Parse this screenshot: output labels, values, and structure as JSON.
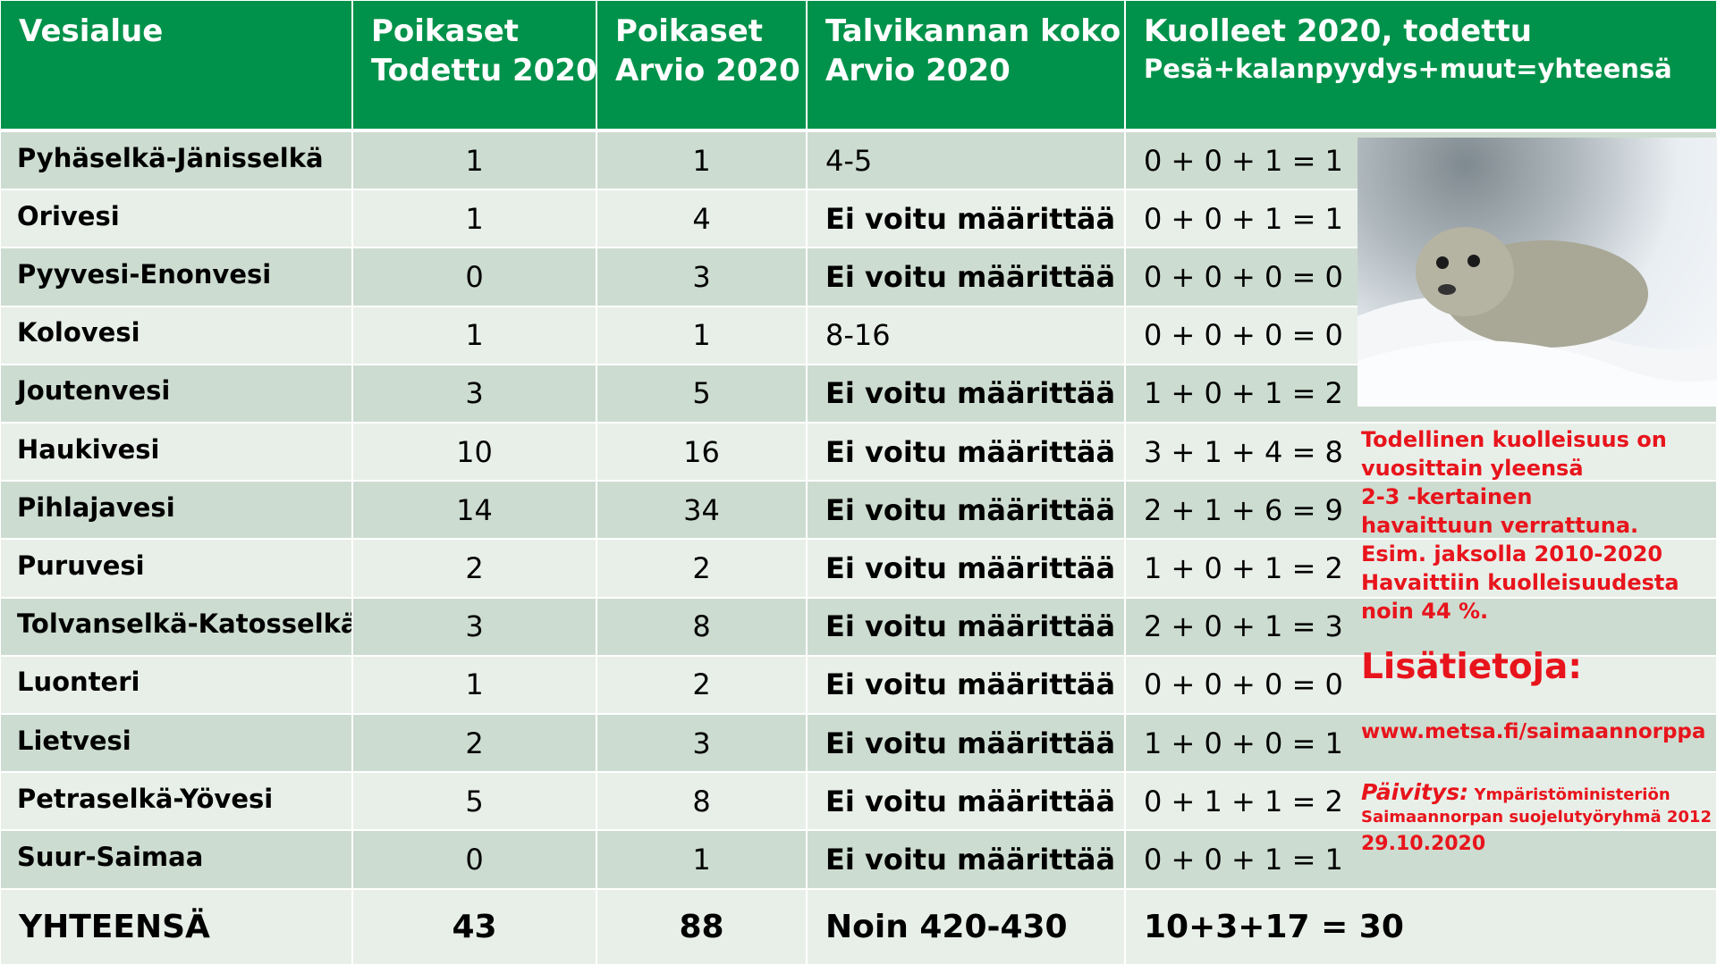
{
  "table": {
    "columns": [
      [
        "Vesialue"
      ],
      [
        "Poikaset",
        "Todettu 2020"
      ],
      [
        "Poikaset",
        "Arvio 2020"
      ],
      [
        "Talvikannan koko",
        "Arvio 2020"
      ],
      [
        "Kuolleet 2020, todettu",
        "Pesä+kalanpyydys+muut=yhteensä"
      ]
    ],
    "rows": [
      [
        "Pyhäselkä-Jänisselkä",
        1,
        1,
        "4-5",
        "0 + 0 + 1 = 1"
      ],
      [
        "Orivesi",
        1,
        4,
        "Ei voitu määrittää",
        "0 + 0 + 1 = 1"
      ],
      [
        "Pyyvesi-Enonvesi",
        0,
        3,
        "Ei voitu määrittää",
        "0 + 0 + 0 = 0"
      ],
      [
        "Kolovesi",
        1,
        1,
        "8-16",
        "0 + 0 + 0 = 0"
      ],
      [
        "Joutenvesi",
        3,
        5,
        "Ei voitu määrittää",
        "1 + 0 + 1 = 2"
      ],
      [
        "Haukivesi",
        10,
        16,
        "Ei voitu määrittää",
        "3 + 1 + 4 = 8"
      ],
      [
        "Pihlajavesi",
        14,
        34,
        "Ei voitu määrittää",
        "2 + 1 + 6 = 9"
      ],
      [
        "Puruvesi",
        2,
        2,
        "Ei voitu määrittää",
        "1 + 0 + 1 = 2"
      ],
      [
        "Tolvanselkä-Katosselkä",
        3,
        8,
        "Ei voitu määrittää",
        "2 + 0 + 1 = 3"
      ],
      [
        "Luonteri",
        1,
        2,
        "Ei voitu määrittää",
        "0 + 0 + 0 = 0"
      ],
      [
        "Lietvesi",
        2,
        3,
        "Ei voitu määrittää",
        "1 + 0 + 0 = 1"
      ],
      [
        "Petraselkä-Yövesi",
        5,
        8,
        "Ei voitu määrittää",
        "0 + 1 + 1 = 2"
      ],
      [
        "Suur-Saimaa",
        0,
        1,
        "Ei voitu määrittää",
        "0 + 0 + 1 = 1"
      ]
    ],
    "total": [
      "YHTEENSÄ",
      43,
      88,
      "Noin 420-430",
      "10+3+17 = 30"
    ]
  },
  "notes": {
    "lines": [
      "Todellinen kuolleisuus on",
      "vuosittain yleensä",
      "2-3 -kertainen",
      "havaittuun verrattuna.",
      "Esim. jaksolla 2010-2020",
      "Havaittiin kuolleisuudesta",
      "noin 44 %."
    ],
    "heading": "Lisätietoja:",
    "link": "www.metsa.fi/saimaannorppa",
    "update_label": "Päivitys:",
    "update_lines": [
      "Ympäristöministeriön",
      "Saimaannorpan suojelutyöryhmä 2012",
      "29.10.2020"
    ]
  }
}
